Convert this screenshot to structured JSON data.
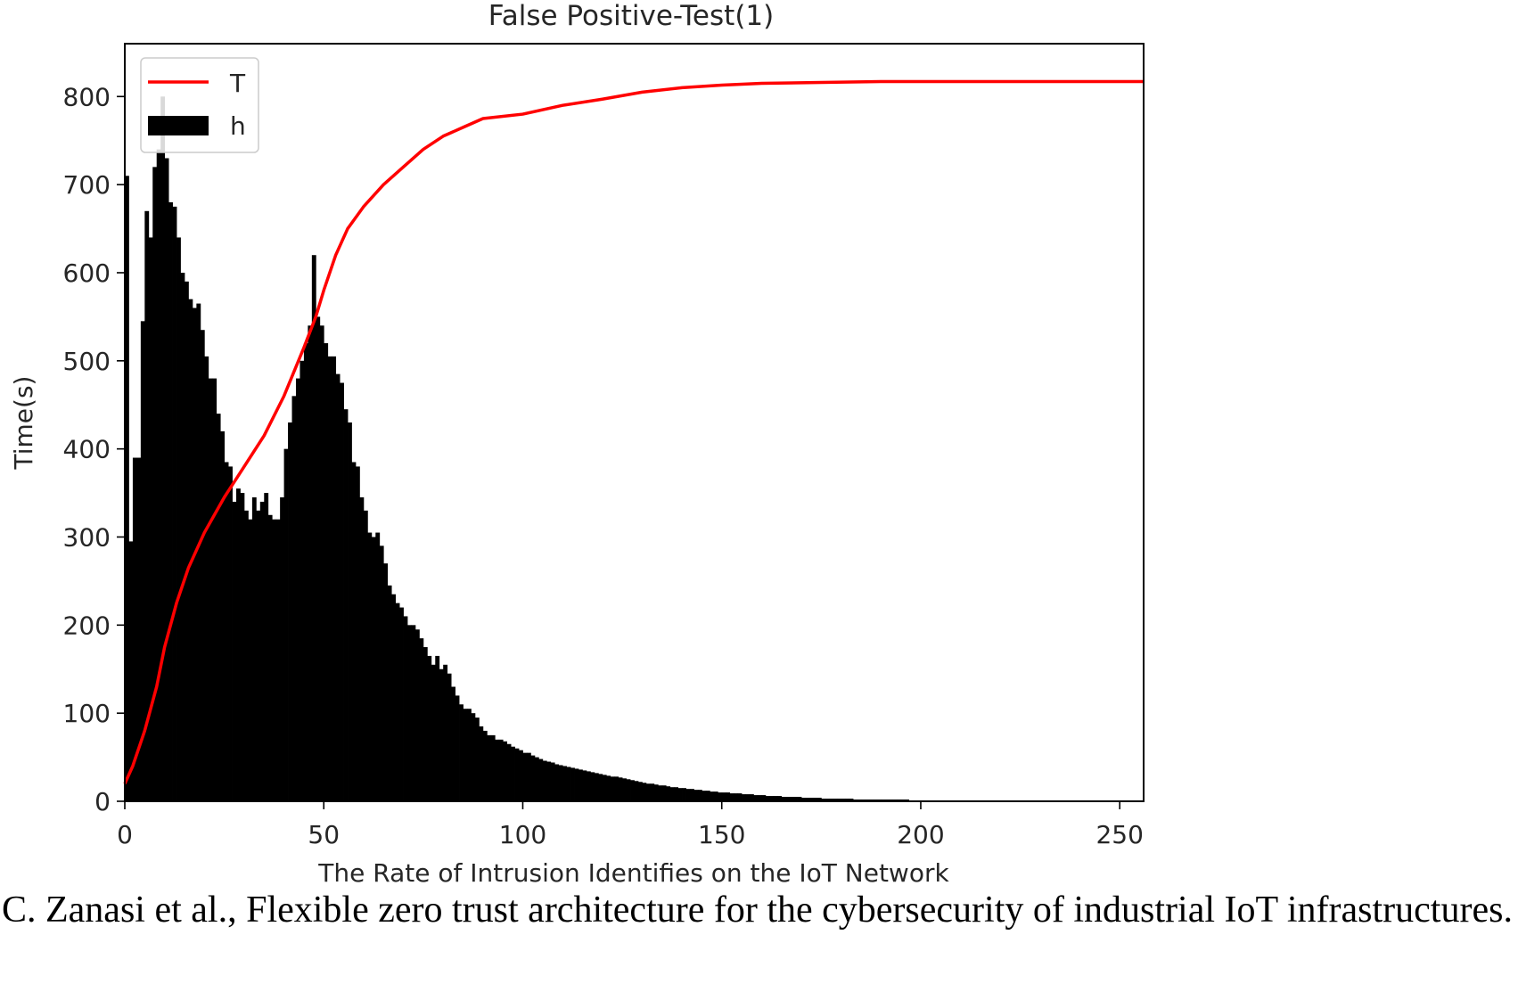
{
  "chart_data": {
    "type": "bar",
    "title": "False Positive-Test(1)",
    "xlabel": "The Rate of Intrusion Identifies on the IoT Network",
    "ylabel": "Time(s)",
    "xlim": [
      0,
      256
    ],
    "ylim": [
      0,
      860
    ],
    "xticks": [
      0,
      50,
      100,
      150,
      200,
      250
    ],
    "yticks": [
      0,
      100,
      200,
      300,
      400,
      500,
      600,
      700,
      800
    ],
    "grid": false,
    "legend_position": "top-left",
    "colors": {
      "T": "#ff0000",
      "h": "#000000"
    },
    "series": [
      {
        "name": "h",
        "kind": "histogram",
        "bin_width": 1,
        "bin_start": 0,
        "values": [
          710,
          295,
          390,
          390,
          545,
          670,
          640,
          720,
          740,
          800,
          730,
          680,
          675,
          640,
          600,
          590,
          570,
          560,
          565,
          535,
          505,
          480,
          480,
          440,
          420,
          385,
          380,
          340,
          355,
          350,
          330,
          320,
          345,
          330,
          340,
          350,
          325,
          320,
          320,
          345,
          400,
          430,
          460,
          480,
          500,
          520,
          540,
          620,
          550,
          540,
          520,
          505,
          505,
          485,
          475,
          445,
          430,
          385,
          380,
          345,
          330,
          305,
          300,
          305,
          290,
          270,
          245,
          235,
          225,
          220,
          210,
          200,
          200,
          195,
          185,
          175,
          165,
          155,
          165,
          150,
          155,
          145,
          130,
          120,
          110,
          105,
          105,
          100,
          95,
          85,
          80,
          75,
          75,
          70,
          70,
          68,
          65,
          62,
          60,
          58,
          55,
          55,
          52,
          50,
          48,
          46,
          45,
          44,
          42,
          41,
          40,
          39,
          38,
          37,
          36,
          35,
          34,
          33,
          32,
          31,
          30,
          29,
          28,
          28,
          27,
          26,
          25,
          24,
          23,
          22,
          21,
          20,
          20,
          19,
          18,
          18,
          17,
          16,
          16,
          15,
          15,
          14,
          14,
          13,
          13,
          12,
          12,
          11,
          11,
          10,
          10,
          10,
          9,
          9,
          9,
          8,
          8,
          8,
          7,
          7,
          7,
          6,
          6,
          6,
          6,
          5,
          5,
          5,
          5,
          5,
          4,
          4,
          4,
          4,
          4,
          3,
          3,
          3,
          3,
          3,
          3,
          3,
          3,
          2,
          2,
          2,
          2,
          2,
          2,
          2,
          2,
          2,
          2,
          2,
          2,
          2,
          2,
          1,
          1,
          1,
          1,
          1,
          1,
          1,
          1,
          1,
          1,
          1,
          1,
          1,
          1,
          1,
          1,
          1,
          1,
          1,
          1,
          1,
          1,
          1,
          1,
          1,
          1,
          1,
          1,
          1,
          1,
          1,
          1,
          1,
          0,
          0,
          0,
          0,
          0,
          0,
          0,
          0,
          0,
          0,
          0,
          0,
          0,
          0,
          0,
          0,
          0,
          0,
          0,
          0,
          0,
          0,
          0,
          0,
          0,
          0,
          0,
          0
        ]
      },
      {
        "name": "T",
        "kind": "line",
        "x": [
          0,
          2,
          5,
          8,
          10,
          13,
          16,
          20,
          25,
          30,
          35,
          40,
          45,
          48,
          50,
          53,
          56,
          60,
          65,
          70,
          75,
          80,
          85,
          90,
          100,
          110,
          120,
          130,
          140,
          150,
          160,
          175,
          190,
          200,
          220,
          240,
          256
        ],
        "y": [
          20,
          40,
          80,
          130,
          175,
          225,
          265,
          305,
          345,
          380,
          415,
          460,
          515,
          550,
          580,
          620,
          650,
          675,
          700,
          720,
          740,
          755,
          765,
          775,
          780,
          790,
          797,
          805,
          810,
          813,
          815,
          816,
          817,
          817,
          817,
          817,
          817
        ]
      }
    ]
  },
  "caption": "C. Zanasi et al., Flexible zero trust architecture for the cybersecurity of industrial IoT infrastructures."
}
